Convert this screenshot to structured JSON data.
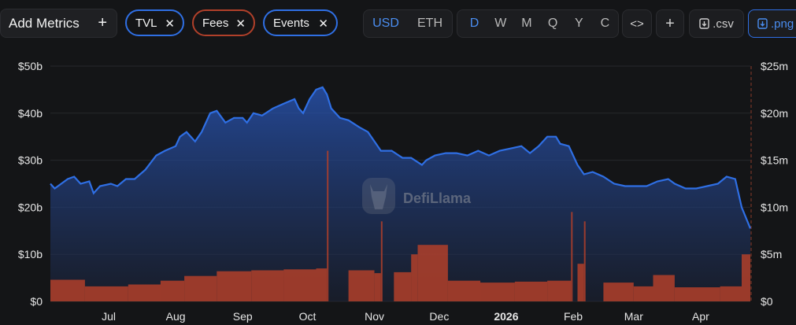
{
  "toolbar": {
    "add_metrics_label": "Add Metrics",
    "plus": "+",
    "close": "✕",
    "pills": [
      {
        "label": "TVL",
        "color": "#2f6fe4"
      },
      {
        "label": "Fees",
        "color": "#b1402a"
      },
      {
        "label": "Events",
        "color": "#2f6fe4"
      }
    ],
    "currency_options": [
      "USD",
      "ETH"
    ],
    "currency_selected": "USD",
    "period_options": [
      "D",
      "W",
      "M",
      "Q",
      "Y",
      "C"
    ],
    "period_selected": "D",
    "embed_label": "<>",
    "add_label": "+",
    "csv_label": ".csv",
    "png_label": ".png"
  },
  "colors": {
    "background": "#141517",
    "tvl_line": "#2f6fe4",
    "fees_bar": "#b1402a",
    "accent": "#4a8df0"
  },
  "watermark": "DefiLlama",
  "chart_data": {
    "type": "area",
    "x_tick_labels": [
      "Jul",
      "Aug",
      "Sep",
      "Oct",
      "Nov",
      "Dec",
      "2026",
      "Feb",
      "Mar",
      "Apr"
    ],
    "x_tick_dates": [
      "2025-07-01",
      "2025-08-01",
      "2025-09-01",
      "2025-10-01",
      "2025-11-01",
      "2025-12-01",
      "2026-01-01",
      "2026-02-01",
      "2026-03-01",
      "2026-04-01"
    ],
    "x_range": [
      "2025-06-04",
      "2026-04-24"
    ],
    "y_left": {
      "ticks": [
        "$0",
        "$10b",
        "$20b",
        "$30b",
        "$40b",
        "$50b"
      ],
      "range": [
        0,
        50
      ],
      "unit": "billion USD"
    },
    "y_right": {
      "ticks": [
        "$0",
        "$5m",
        "$10m",
        "$15m",
        "$20m",
        "$25m"
      ],
      "range": [
        0,
        25
      ],
      "unit": "million USD"
    },
    "grid": true,
    "series": [
      {
        "name": "TVL",
        "type": "area",
        "axis": "left",
        "color": "#2f6fe4",
        "points": [
          [
            "2025-06-04",
            25
          ],
          [
            "2025-06-06",
            24
          ],
          [
            "2025-06-12",
            26
          ],
          [
            "2025-06-15",
            26.5
          ],
          [
            "2025-06-18",
            25
          ],
          [
            "2025-06-22",
            25.5
          ],
          [
            "2025-06-24",
            23
          ],
          [
            "2025-06-27",
            24.5
          ],
          [
            "2025-07-02",
            25
          ],
          [
            "2025-07-05",
            24.5
          ],
          [
            "2025-07-09",
            26
          ],
          [
            "2025-07-13",
            26
          ],
          [
            "2025-07-18",
            28
          ],
          [
            "2025-07-23",
            31
          ],
          [
            "2025-07-27",
            32
          ],
          [
            "2025-08-01",
            33
          ],
          [
            "2025-08-03",
            35
          ],
          [
            "2025-08-06",
            36
          ],
          [
            "2025-08-10",
            34
          ],
          [
            "2025-08-13",
            36
          ],
          [
            "2025-08-17",
            40
          ],
          [
            "2025-08-20",
            40.5
          ],
          [
            "2025-08-24",
            38
          ],
          [
            "2025-08-28",
            39
          ],
          [
            "2025-09-01",
            39
          ],
          [
            "2025-09-03",
            38
          ],
          [
            "2025-09-06",
            40
          ],
          [
            "2025-09-10",
            39.5
          ],
          [
            "2025-09-15",
            41
          ],
          [
            "2025-09-20",
            42
          ],
          [
            "2025-09-25",
            43
          ],
          [
            "2025-09-27",
            41
          ],
          [
            "2025-09-29",
            40
          ],
          [
            "2025-10-02",
            43
          ],
          [
            "2025-10-05",
            45
          ],
          [
            "2025-10-08",
            45.5
          ],
          [
            "2025-10-10",
            44
          ],
          [
            "2025-10-12",
            41
          ],
          [
            "2025-10-16",
            39
          ],
          [
            "2025-10-20",
            38.5
          ],
          [
            "2025-10-25",
            37
          ],
          [
            "2025-10-29",
            36
          ],
          [
            "2025-11-01",
            34
          ],
          [
            "2025-11-04",
            32
          ],
          [
            "2025-11-09",
            32
          ],
          [
            "2025-11-14",
            30.5
          ],
          [
            "2025-11-18",
            30.5
          ],
          [
            "2025-11-23",
            29
          ],
          [
            "2025-11-25",
            30
          ],
          [
            "2025-11-29",
            31
          ],
          [
            "2025-12-04",
            31.5
          ],
          [
            "2025-12-09",
            31.5
          ],
          [
            "2025-12-14",
            31
          ],
          [
            "2025-12-19",
            32
          ],
          [
            "2025-12-24",
            31
          ],
          [
            "2025-12-29",
            32
          ],
          [
            "2026-01-03",
            32.5
          ],
          [
            "2026-01-08",
            33
          ],
          [
            "2026-01-12",
            31.5
          ],
          [
            "2026-01-16",
            33
          ],
          [
            "2026-01-20",
            35
          ],
          [
            "2026-01-24",
            35
          ],
          [
            "2026-01-26",
            33.5
          ],
          [
            "2026-01-30",
            33
          ],
          [
            "2026-02-03",
            29
          ],
          [
            "2026-02-06",
            27
          ],
          [
            "2026-02-10",
            27.5
          ],
          [
            "2026-02-15",
            26.5
          ],
          [
            "2026-02-20",
            25
          ],
          [
            "2026-02-25",
            24.5
          ],
          [
            "2026-03-02",
            24.5
          ],
          [
            "2026-03-07",
            24.5
          ],
          [
            "2026-03-12",
            25.5
          ],
          [
            "2026-03-17",
            26
          ],
          [
            "2026-03-20",
            25
          ],
          [
            "2026-03-25",
            24
          ],
          [
            "2026-03-30",
            24
          ],
          [
            "2026-04-04",
            24.5
          ],
          [
            "2026-04-09",
            25
          ],
          [
            "2026-04-13",
            26.5
          ],
          [
            "2026-04-17",
            26
          ],
          [
            "2026-04-20",
            20
          ],
          [
            "2026-04-24",
            15.5
          ]
        ]
      },
      {
        "name": "Fees",
        "type": "bar",
        "axis": "right",
        "color": "#b1402a",
        "points": [
          [
            "2025-06-04",
            2.3
          ],
          [
            "2025-06-20",
            1.6
          ],
          [
            "2025-07-10",
            1.8
          ],
          [
            "2025-07-25",
            2.2
          ],
          [
            "2025-08-05",
            2.7
          ],
          [
            "2025-08-20",
            3.2
          ],
          [
            "2025-09-05",
            3.3
          ],
          [
            "2025-09-20",
            3.4
          ],
          [
            "2025-10-05",
            3.5
          ],
          [
            "2025-10-10",
            16
          ],
          [
            "2025-10-20",
            3.3
          ],
          [
            "2025-11-01",
            3
          ],
          [
            "2025-11-04",
            8.5
          ],
          [
            "2025-11-10",
            3.1
          ],
          [
            "2025-11-18",
            5
          ],
          [
            "2025-11-21",
            6
          ],
          [
            "2025-12-05",
            2.2
          ],
          [
            "2025-12-20",
            2
          ],
          [
            "2026-01-05",
            2.1
          ],
          [
            "2026-01-20",
            2.2
          ],
          [
            "2026-01-31",
            9.5
          ],
          [
            "2026-02-03",
            4
          ],
          [
            "2026-02-06",
            8.5
          ],
          [
            "2026-02-15",
            2
          ],
          [
            "2026-03-01",
            1.6
          ],
          [
            "2026-03-10",
            2.8
          ],
          [
            "2026-03-20",
            1.5
          ],
          [
            "2026-04-10",
            1.6
          ],
          [
            "2026-04-20",
            5
          ]
        ]
      }
    ]
  }
}
